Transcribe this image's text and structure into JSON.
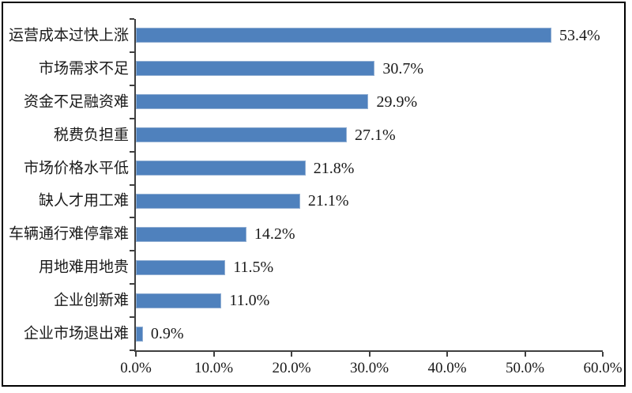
{
  "chart_data": {
    "type": "bar",
    "orientation": "horizontal",
    "title": "",
    "xlabel": "",
    "ylabel": "",
    "categories": [
      "运营成本过快上涨",
      "市场需求不足",
      "资金不足融资难",
      "税费负担重",
      "市场价格水平低",
      "缺人才用工难",
      "车辆通行难停靠难",
      "用地难用地贵",
      "企业创新难",
      "企业市场退出难"
    ],
    "values": [
      53.4,
      30.7,
      29.9,
      27.1,
      21.8,
      21.1,
      14.2,
      11.5,
      11.0,
      0.9
    ],
    "value_labels": [
      "53.4%",
      "30.7%",
      "29.9%",
      "27.1%",
      "21.8%",
      "21.1%",
      "14.2%",
      "11.5%",
      "11.0%",
      "0.9%"
    ],
    "x_tick_labels": [
      "0.0%",
      "10.0%",
      "20.0%",
      "30.0%",
      "40.0%",
      "50.0%",
      "60.0%"
    ],
    "xlim": [
      0,
      60
    ],
    "grid": false,
    "legend": null,
    "colors": {
      "bar": "#4f81bd",
      "bar_border": "#92afd3",
      "axis": "#404040",
      "text": "#1a1a1a",
      "frame": "#000000",
      "background": "#ffffff"
    }
  }
}
